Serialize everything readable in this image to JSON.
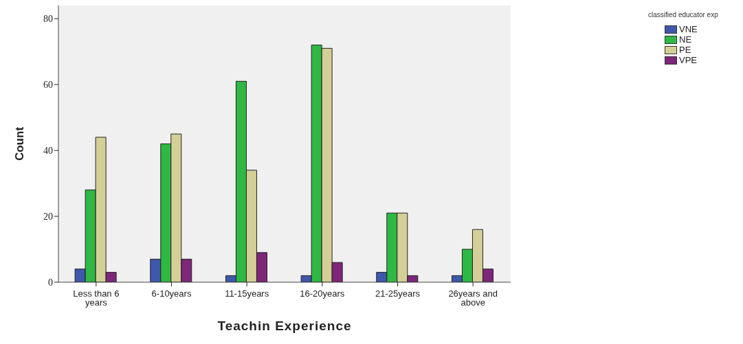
{
  "chart_data": {
    "type": "bar",
    "xlabel": "Teachin Experience",
    "ylabel": "Count",
    "legend_title": "classified educator exp",
    "categories": [
      "Less than 6 years",
      "6-10years",
      "11-15years",
      "16-20years",
      "21-25years",
      "26years and above"
    ],
    "series": [
      {
        "name": "VNE",
        "color": "#3f58ab",
        "values": [
          4,
          7,
          2,
          2,
          3,
          2
        ]
      },
      {
        "name": "NE",
        "color": "#2fb844",
        "values": [
          28,
          42,
          61,
          72,
          21,
          10
        ]
      },
      {
        "name": "PE",
        "color": "#d4cf96",
        "values": [
          44,
          45,
          34,
          71,
          21,
          16
        ]
      },
      {
        "name": "VPE",
        "color": "#7d267a",
        "values": [
          3,
          7,
          9,
          6,
          2,
          4
        ]
      }
    ],
    "ylim": [
      0,
      84
    ],
    "yticks": [
      0,
      20,
      40,
      60,
      80
    ],
    "grid": false,
    "legend": "top right"
  }
}
